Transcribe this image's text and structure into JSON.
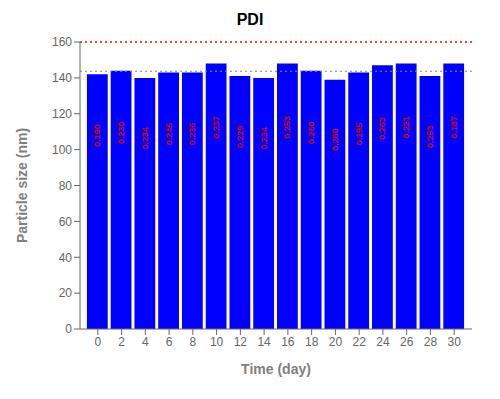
{
  "chart_data": {
    "type": "bar",
    "title": "PDI",
    "xlabel": "Time (day)",
    "ylabel": "Particle size (nm)",
    "x": [
      0,
      2,
      4,
      6,
      8,
      10,
      12,
      14,
      16,
      18,
      20,
      22,
      24,
      26,
      28,
      30
    ],
    "values": [
      142,
      144,
      140,
      143,
      143,
      148,
      141,
      140,
      148,
      144,
      139,
      143,
      147,
      148,
      141,
      148
    ],
    "color": "#0000FF",
    "xlim": [
      -1.5,
      31.5
    ],
    "xticks": [
      0,
      2,
      4,
      6,
      8,
      10,
      12,
      14,
      16,
      18,
      20,
      22,
      24,
      26,
      28,
      30
    ],
    "ylim": [
      0,
      160
    ],
    "yticks": [
      0,
      20,
      40,
      60,
      80,
      100,
      120,
      140,
      160
    ],
    "grid": false,
    "annotations": [
      {
        "x": 0,
        "text": "0.190",
        "color": "#CC0000"
      },
      {
        "x": 2,
        "text": "0.230",
        "color": "#CC0000"
      },
      {
        "x": 4,
        "text": "0.234",
        "color": "#CC0000"
      },
      {
        "x": 6,
        "text": "0.245",
        "color": "#CC0000"
      },
      {
        "x": 8,
        "text": "0.236",
        "color": "#CC0000"
      },
      {
        "x": 10,
        "text": "0.237",
        "color": "#CC0000"
      },
      {
        "x": 12,
        "text": "0.229",
        "color": "#CC0000"
      },
      {
        "x": 14,
        "text": "0.234",
        "color": "#CC0000"
      },
      {
        "x": 16,
        "text": "0.253",
        "color": "#CC0000"
      },
      {
        "x": 18,
        "text": "0.260",
        "color": "#CC0000"
      },
      {
        "x": 20,
        "text": "0.260",
        "color": "#CC0000"
      },
      {
        "x": 22,
        "text": "0.195",
        "color": "#CC0000"
      },
      {
        "x": 24,
        "text": "0.263",
        "color": "#CC0000"
      },
      {
        "x": 26,
        "text": "0.221",
        "color": "#CC0000"
      },
      {
        "x": 28,
        "text": "0.253",
        "color": "#CC0000"
      },
      {
        "x": 30,
        "text": "0.187",
        "color": "#CC0000"
      }
    ],
    "reference_lines": [
      {
        "y": 143.6875,
        "color": "#888888",
        "line_style": "dotted"
      },
      {
        "y": 160,
        "color": "#FF0000",
        "line_style": "dotted"
      }
    ]
  }
}
